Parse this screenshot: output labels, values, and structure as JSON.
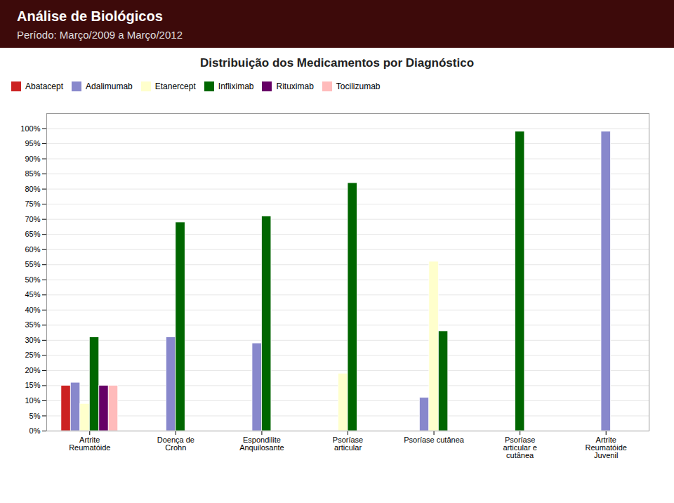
{
  "chart_data": {
    "type": "bar",
    "title": "Distribuição dos Medicamentos por Diagnóstico",
    "annotations": [
      "Análise de Biológicos",
      "Período: Março/2009 a Março/2012"
    ],
    "categories": [
      "Artrite\nReumatóide",
      "Doença de\nCrohn",
      "Espondilite\nAnquilosante",
      "Psoríase\narticular",
      "Psoríase cutânea",
      "Psoríase\narticular e\ncutânea",
      "Artrite\nReumatóide\nJuvenil"
    ],
    "series": [
      {
        "name": "Abatacept",
        "color": "#CC2222",
        "values": [
          15,
          0,
          0,
          0,
          0,
          0,
          0
        ]
      },
      {
        "name": "Adalimumab",
        "color": "#8888CC",
        "values": [
          16,
          31,
          29,
          0,
          11,
          0,
          99
        ]
      },
      {
        "name": "Etanercept",
        "color": "#FFFFCC",
        "values": [
          9,
          0,
          0,
          19,
          56,
          0,
          0
        ]
      },
      {
        "name": "Infliximab",
        "color": "#006600",
        "values": [
          31,
          69,
          71,
          82,
          33,
          99,
          0
        ]
      },
      {
        "name": "Rituximab",
        "color": "#660066",
        "values": [
          15,
          0,
          0,
          0,
          0,
          0,
          0
        ]
      },
      {
        "name": "Tocilizumab",
        "color": "#FFBBBB",
        "values": [
          15,
          0,
          0,
          0,
          0,
          0,
          0
        ]
      }
    ],
    "ylim": [
      0,
      105
    ],
    "yticks": [
      {
        "value": 0,
        "label": "0%"
      },
      {
        "value": 5,
        "label": "5%"
      },
      {
        "value": 10,
        "label": "10%"
      },
      {
        "value": 15,
        "label": "15%"
      },
      {
        "value": 20,
        "label": "20%"
      },
      {
        "value": 25,
        "label": "25%"
      },
      {
        "value": 30,
        "label": "30%"
      },
      {
        "value": 35,
        "label": "35%"
      },
      {
        "value": 40,
        "label": "40%"
      },
      {
        "value": 45,
        "label": "45%"
      },
      {
        "value": 50,
        "label": "50%"
      },
      {
        "value": 55,
        "label": "55%"
      },
      {
        "value": 60,
        "label": "60%"
      },
      {
        "value": 65,
        "label": "65%"
      },
      {
        "value": 70,
        "label": "70%"
      },
      {
        "value": 75,
        "label": "75%"
      },
      {
        "value": 80,
        "label": "80%"
      },
      {
        "value": 85,
        "label": "85%"
      },
      {
        "value": 90,
        "label": "90%"
      },
      {
        "value": 95,
        "label": "95%"
      },
      {
        "value": 100,
        "label": "100%"
      }
    ],
    "grid": true,
    "legend": "top"
  }
}
